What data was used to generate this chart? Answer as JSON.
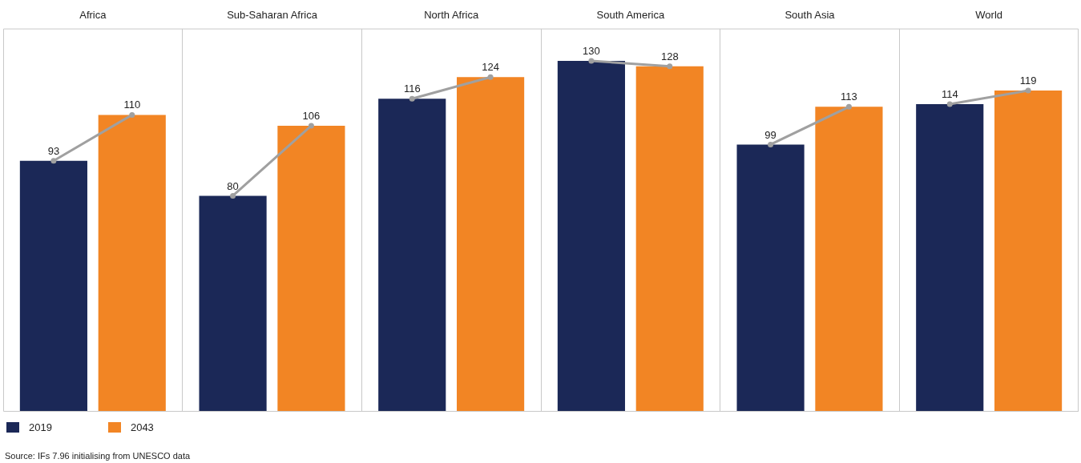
{
  "chart_data": {
    "type": "bar",
    "categories": [
      "Africa",
      "Sub-Saharan Africa",
      "North Africa",
      "South America",
      "South Asia",
      "World"
    ],
    "ylim": [
      0,
      142
    ],
    "tick_labels": "x",
    "grid": "x",
    "data_labels": true,
    "marker": "circle",
    "legend": "bottom left",
    "annotations": [
      "Source: IFs 7.96 initialising from UNESCO data"
    ],
    "series": [
      {
        "name": "2019",
        "color": "#1b2857",
        "values": [
          93,
          80,
          116,
          130,
          99,
          114
        ]
      },
      {
        "name": "2043",
        "color": "#f28524",
        "values": [
          110,
          106,
          124,
          128,
          113,
          119
        ]
      }
    ]
  }
}
